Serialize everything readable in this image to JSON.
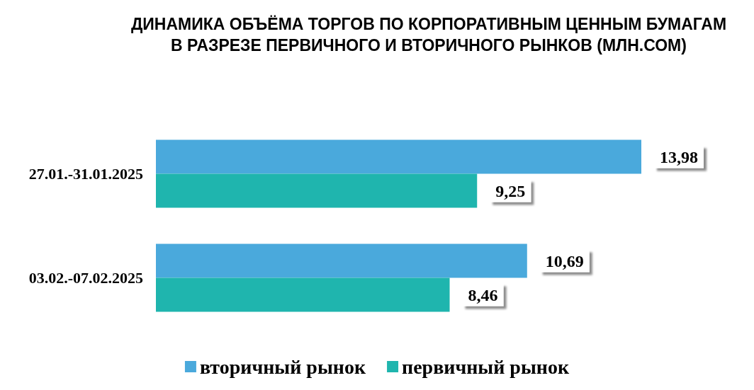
{
  "chart_data": {
    "type": "bar",
    "orientation": "horizontal",
    "title": "ДИНАМИКА ОБЪЁМА ТОРГОВ ПО КОРПОРАТИВНЫМ ЦЕННЫМ БУМАГАМ\nВ РАЗРЕЗЕ ПЕРВИЧНОГО И ВТОРИЧНОГО РЫНКОВ (МЛН.СОМ)",
    "categories": [
      "27.01.-31.01.2025",
      "03.02.-07.02.2025"
    ],
    "series": [
      {
        "name": "вторичный рынок",
        "color": "#4aa9dc",
        "values": [
          13.98,
          10.69
        ],
        "value_labels": [
          "13,98",
          "10,69"
        ]
      },
      {
        "name": "первичный рынок",
        "color": "#1fb5ae",
        "values": [
          9.25,
          8.46
        ],
        "value_labels": [
          "9,25",
          "8,46"
        ]
      }
    ],
    "legend": "bottom",
    "tick_labels": "y"
  }
}
